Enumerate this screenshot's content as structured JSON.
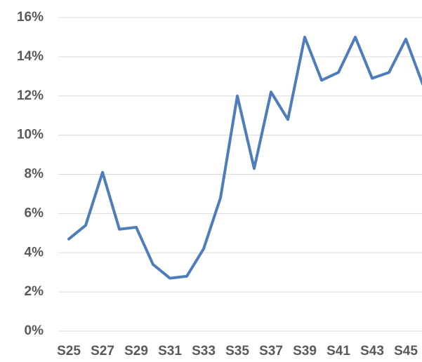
{
  "chart_data": {
    "type": "line",
    "categories": [
      "S25",
      null,
      "S27",
      null,
      "S29",
      null,
      "S31",
      null,
      "S33",
      null,
      "S35",
      null,
      "S37",
      null,
      "S39",
      null,
      "S41",
      null,
      "S43",
      null,
      "S45",
      null
    ],
    "series": [
      {
        "color": "#4e7dbb",
        "values": [
          4.7,
          5.4,
          8.1,
          5.2,
          5.3,
          3.4,
          2.7,
          2.8,
          4.2,
          6.8,
          12.0,
          8.3,
          12.2,
          10.8,
          15.0,
          12.8,
          13.2,
          15.0,
          12.9,
          13.2,
          14.9,
          12.6
        ]
      }
    ],
    "ylim": [
      0,
      16
    ],
    "yticks": [
      {
        "value": 0,
        "label": "0%"
      },
      {
        "value": 2,
        "label": "2%"
      },
      {
        "value": 4,
        "label": "4%"
      },
      {
        "value": 6,
        "label": "6%"
      },
      {
        "value": 8,
        "label": "8%"
      },
      {
        "value": 10,
        "label": "10%"
      },
      {
        "value": 12,
        "label": "12%"
      },
      {
        "value": 14,
        "label": "14%"
      },
      {
        "value": 16,
        "label": "16%"
      }
    ],
    "grid": true
  }
}
